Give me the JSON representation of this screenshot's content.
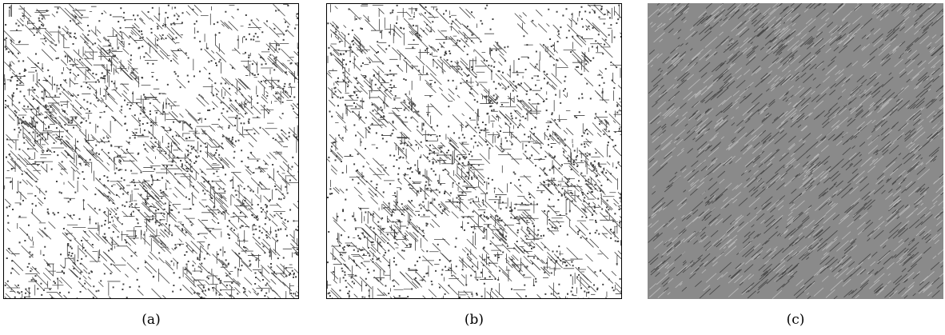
{
  "panels": [
    {
      "id": "a",
      "caption": "(a)",
      "style": "binary-spike-raster",
      "background": "#ffffff",
      "mark_color": "#222222",
      "framed": true
    },
    {
      "id": "b",
      "caption": "(b)",
      "style": "binary-spike-raster",
      "background": "#ffffff",
      "mark_color": "#222222",
      "framed": true
    },
    {
      "id": "c",
      "caption": "(c)",
      "style": "grayscale-difference-map",
      "background": "#8a8a8a",
      "mark_dark": "#2e2e2e",
      "mark_light": "#d8d8d8",
      "framed": false
    }
  ]
}
